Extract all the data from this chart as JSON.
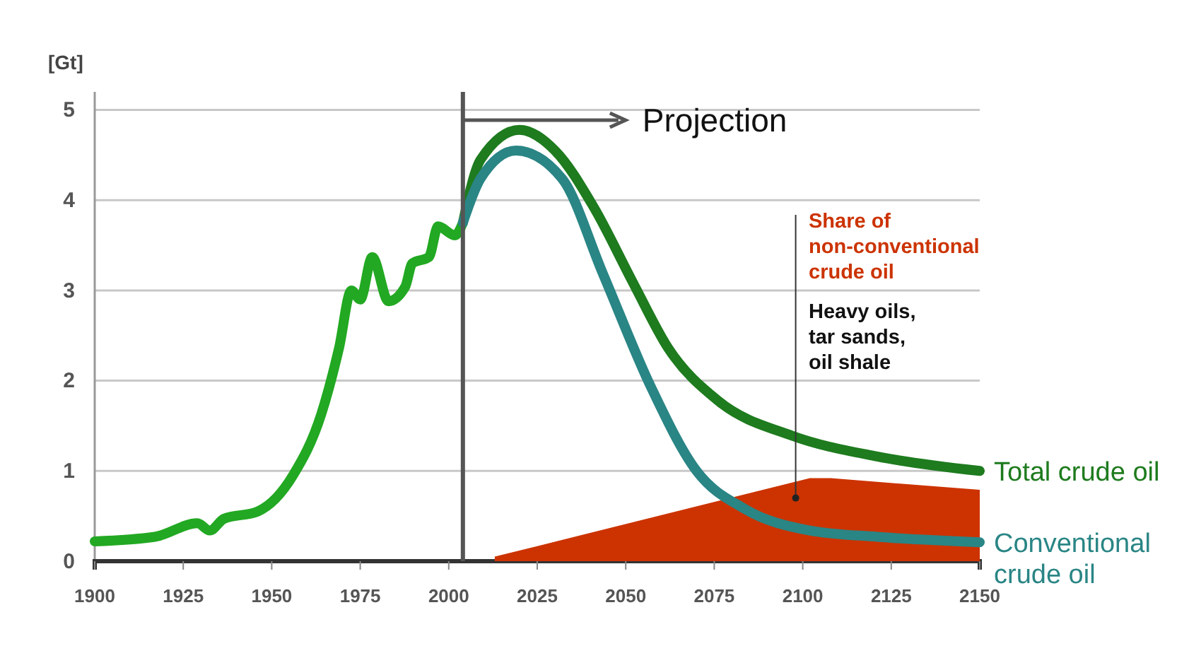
{
  "chart_data": {
    "type": "line",
    "ylabel": "[Gt]",
    "xlim": [
      1900,
      2150
    ],
    "xticks": [
      1900,
      1925,
      1950,
      1975,
      2000,
      2025,
      2050,
      2075,
      2100,
      2125,
      2150
    ],
    "ylim": [
      0,
      5.2
    ],
    "yticks": [
      0,
      1,
      2,
      3,
      4,
      5
    ],
    "grid": "y",
    "marker": "none",
    "line_style": "solid",
    "series": [
      {
        "type": "area",
        "color": "#cc3300",
        "x": [
          2013,
          2102,
          2108,
          2150
        ],
        "values": [
          0.05,
          0.92,
          0.92,
          0.79
        ]
      },
      {
        "color": "#22a822",
        "x": [
          1900,
          1917,
          1929,
          1932.5,
          1936.5,
          1946,
          1956,
          1964,
          1969,
          1972.5,
          1975,
          1978.4,
          1983,
          1987.7,
          1989.7,
          1994.4,
          1997,
          2001.7,
          2004
        ],
        "values": [
          0.22,
          0.27,
          0.42,
          0.34,
          0.47,
          0.55,
          0.95,
          1.63,
          2.36,
          3.0,
          2.9,
          3.37,
          2.88,
          3.04,
          3.3,
          3.37,
          3.71,
          3.61,
          3.75
        ]
      },
      {
        "name": "Total crude oil",
        "color": "#1e7b1e",
        "x": [
          2004,
          2009,
          2020,
          2030,
          2041,
          2052,
          2062,
          2076,
          2097,
          2121,
          2150
        ],
        "values": [
          3.75,
          4.45,
          4.78,
          4.55,
          3.92,
          3.09,
          2.36,
          1.78,
          1.39,
          1.16,
          1.0
        ]
      },
      {
        "name": "Conventional crude oil",
        "color": "#2a8585",
        "x": [
          2004,
          2009,
          2019,
          2032,
          2043.5,
          2057,
          2070,
          2083.6,
          2102,
          2121,
          2150
        ],
        "values": [
          3.75,
          4.24,
          4.55,
          4.24,
          3.19,
          1.94,
          1.0,
          0.58,
          0.34,
          0.27,
          0.21
        ]
      }
    ],
    "ref_lines": [
      {
        "axis": "x",
        "value": 2004,
        "label": "Projection",
        "color": "#555555"
      }
    ],
    "annotations": [
      {
        "text": "Share of non-conventional crude oil",
        "x": 2098,
        "y": 0.7
      },
      "Heavy oils, tar sands, oil shale"
    ]
  }
}
